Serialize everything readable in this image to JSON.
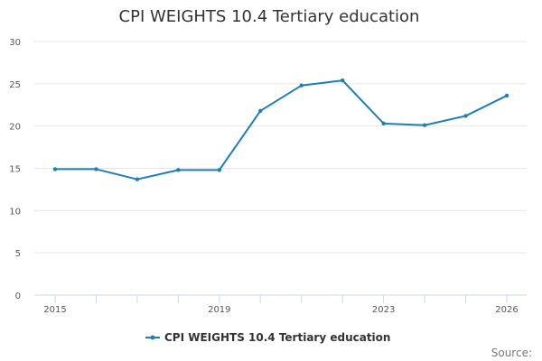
{
  "source_label": "Source:",
  "colors": {
    "series": "#1f7fb4",
    "grid": "#e6e6e6",
    "axis": "#ccd6eb"
  },
  "chart_data": {
    "type": "line",
    "title": "CPI WEIGHTS 10.4 Tertiary education",
    "xlabel": "",
    "ylabel": "",
    "x": [
      2015,
      2016,
      2017,
      2018,
      2019,
      2020,
      2021,
      2022,
      2023,
      2024,
      2025,
      2026
    ],
    "series": [
      {
        "name": "CPI WEIGHTS 10.4 Tertiary education",
        "values": [
          14.9,
          14.9,
          13.7,
          14.8,
          14.8,
          21.8,
          24.8,
          25.4,
          20.3,
          20.1,
          21.2,
          23.6
        ]
      }
    ],
    "ylim": [
      0,
      30
    ],
    "yticks": [
      0,
      5,
      10,
      15,
      20,
      25,
      30
    ],
    "xtick_labels": [
      "2015",
      "2019",
      "2023",
      "2026"
    ],
    "grid": true,
    "legend_position": "bottom"
  }
}
